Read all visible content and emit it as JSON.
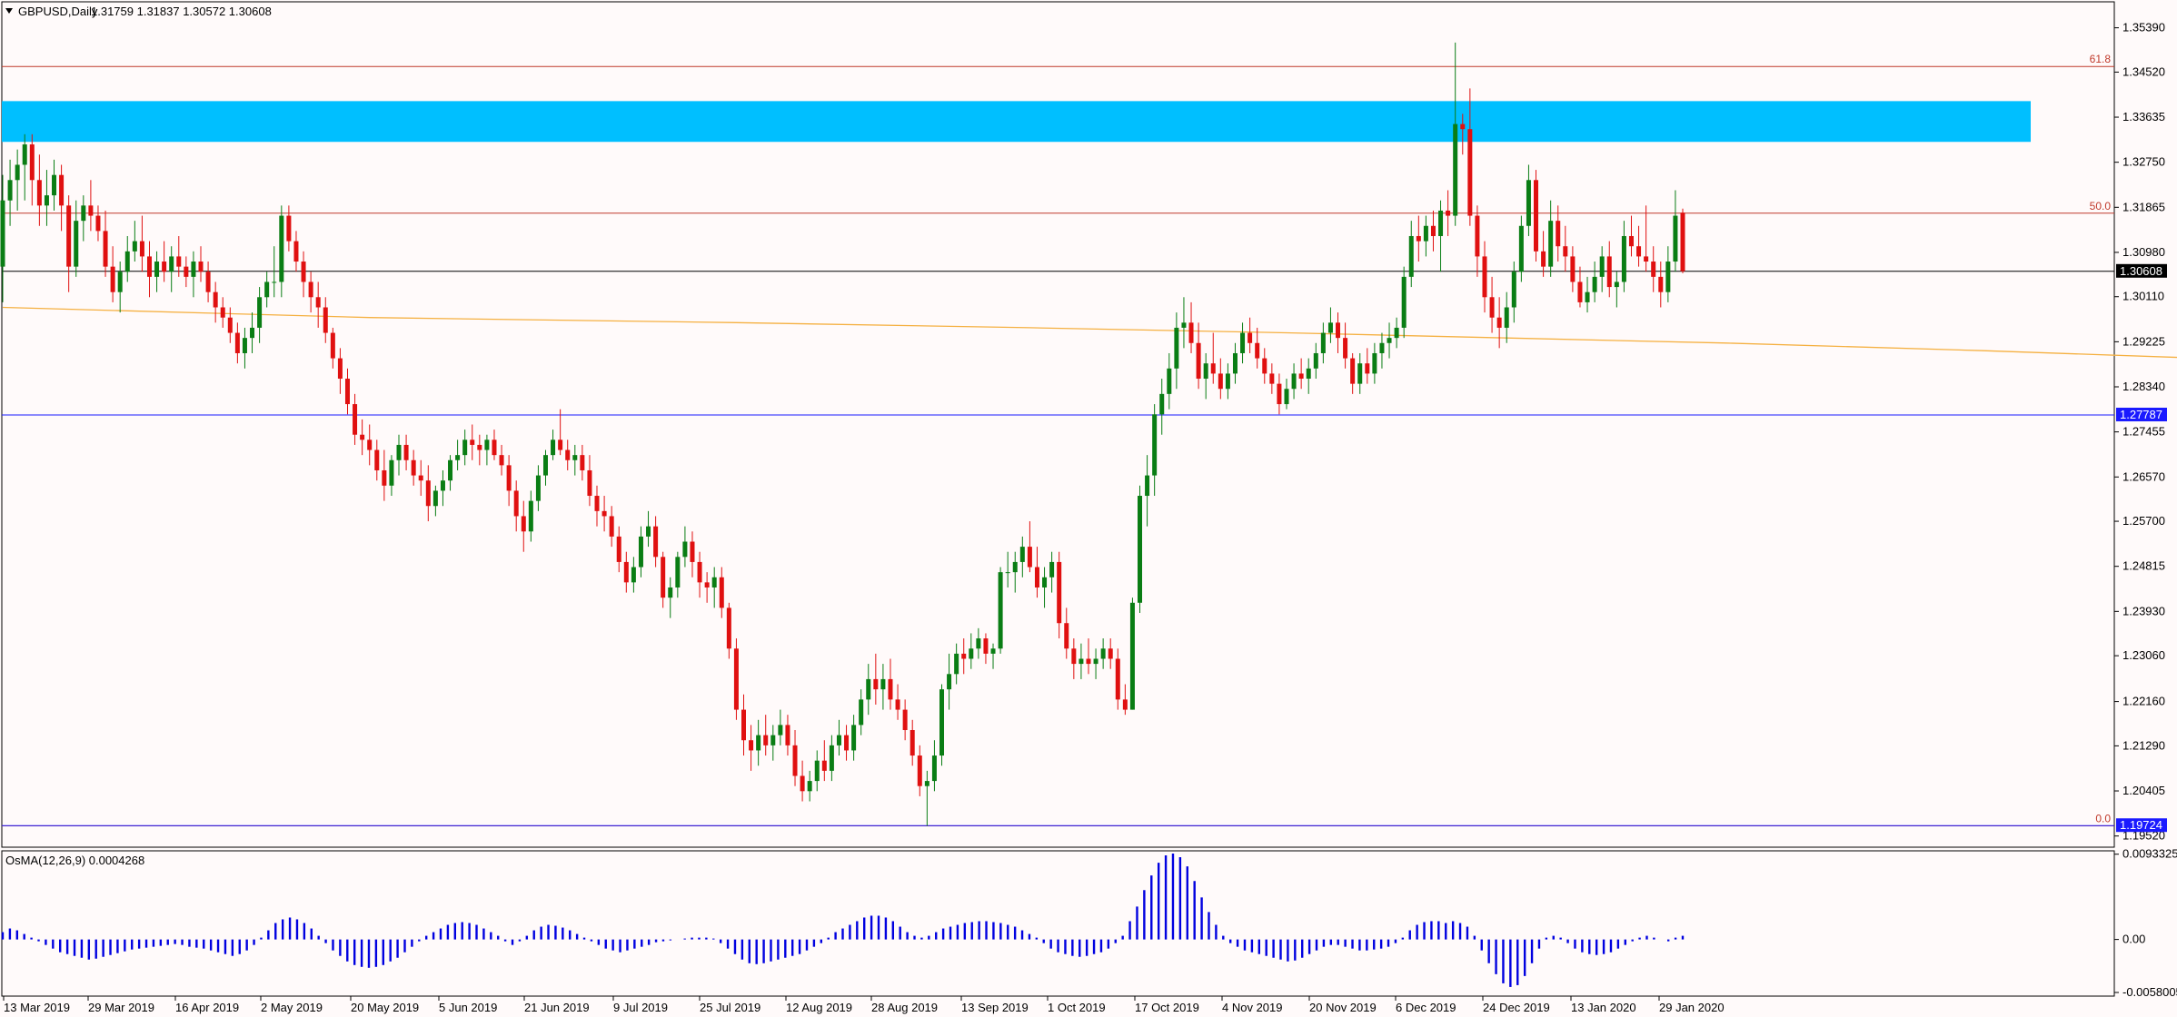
{
  "header": {
    "symbol": "GBPUSD,Daily",
    "ohlc": "1.31759 1.31837 1.30572 1.30608"
  },
  "chart_data": {
    "type": "candlestick",
    "y_axis_ticks": [
      "1.35390",
      "1.34520",
      "1.33635",
      "1.32750",
      "1.31865",
      "1.30980",
      "1.30110",
      "1.29225",
      "1.28340",
      "1.27455",
      "1.26570",
      "1.25700",
      "1.24815",
      "1.23930",
      "1.23060",
      "1.22160",
      "1.21290",
      "1.20405",
      "1.19520"
    ],
    "ylim": [
      1.193,
      1.359
    ],
    "x_axis_ticks": [
      "13 Mar 2019",
      "29 Mar 2019",
      "16 Apr 2019",
      "2 May 2019",
      "20 May 2019",
      "5 Jun 2019",
      "21 Jun 2019",
      "9 Jul 2019",
      "25 Jul 2019",
      "12 Aug 2019",
      "28 Aug 2019",
      "13 Sep 2019",
      "1 Oct 2019",
      "17 Oct 2019",
      "4 Nov 2019",
      "20 Nov 2019",
      "6 Dec 2019",
      "24 Dec 2019",
      "13 Jan 2020",
      "29 Jan 2020"
    ],
    "price_levels": [
      {
        "label": "1.30608",
        "value": 1.30608,
        "kind": "current",
        "color": "#000000"
      },
      {
        "label": "1.27787",
        "value": 1.27787,
        "kind": "horizontal",
        "color": "#1a1aff"
      },
      {
        "label": "1.19724",
        "value": 1.19724,
        "kind": "horizontal",
        "color": "#1a1aff"
      }
    ],
    "fibonacci": [
      {
        "label": "61.8",
        "value": 1.3463
      },
      {
        "label": "50.0",
        "value": 1.3175
      },
      {
        "label": "0.0",
        "value": 1.1972
      }
    ],
    "zone": {
      "from": 1.3315,
      "to": 1.3395,
      "color": "#00bfff"
    },
    "moving_average": {
      "color": "#f5b041",
      "points": [
        [
          0,
          1.299
        ],
        [
          50,
          1.297
        ],
        [
          100,
          1.296
        ],
        [
          140,
          1.295
        ],
        [
          175,
          1.294
        ],
        [
          205,
          1.293
        ],
        [
          235,
          1.292
        ],
        [
          270,
          1.2905
        ],
        [
          300,
          1.289
        ],
        [
          325,
          1.2875
        ],
        [
          355,
          1.2855
        ],
        [
          380,
          1.2835
        ],
        [
          405,
          1.281
        ],
        [
          430,
          1.279
        ],
        [
          455,
          1.277
        ],
        [
          480,
          1.275
        ],
        [
          505,
          1.2735
        ],
        [
          530,
          1.272
        ],
        [
          560,
          1.271
        ],
        [
          585,
          1.2705
        ],
        [
          610,
          1.2705
        ],
        [
          640,
          1.27
        ],
        [
          665,
          1.27
        ],
        [
          690,
          1.2695
        ],
        [
          710,
          1.27
        ],
        [
          730,
          1.27
        ],
        [
          755,
          1.2695
        ],
        [
          775,
          1.269
        ],
        [
          800,
          1.269
        ],
        [
          819,
          1.269
        ]
      ]
    },
    "candles_raw": "1.3070 1.3250 1.3000 1.3200|1.3200 1.3280 1.3150 1.3240|1.3240 1.3300 1.3180 1.3270|1.3270 1.3330 1.3200 1.3310|1.3310 1.3330 1.3190 1.3240|1.3240 1.3290 1.3150 1.3190|1.3190 1.3260 1.3150 1.3210|1.3210 1.3280 1.3180 1.3250|1.3250 1.3270 1.3140 1.3190|1.3190 1.3210 1.3020 1.3070|1.3070 1.3200 1.3050 1.3160|1.3160 1.3210 1.3120 1.3190|1.3190 1.3240 1.3140 1.3170|1.3170 1.3190 1.3120 1.3140|1.3140 1.3180 1.3050 1.3070|1.3070 1.3110 1.3000 1.3020|1.3020 1.3080 1.2980 1.3060|1.3060 1.3130 1.3040 1.3100|1.3100 1.3160 1.3080 1.3120|1.3120 1.3170 1.3060 1.3090|1.3090 1.3120 1.3010 1.3050|1.3050 1.3100 1.3020 1.3080|1.3080 1.3120 1.3040 1.3060|1.3060 1.3110 1.3020 1.3090|1.3090 1.3130 1.3050 1.3070|1.3070 1.3090 1.3030 1.3050|1.3050 1.3100 1.3010 1.3080|1.3080 1.3110 1.3040 1.3060|1.3060 1.3080 1.3000 1.3020|1.3020 1.3040 1.2960 1.2990|1.2990 1.3010 1.2950 1.2970|1.2970 1.2990 1.2920 1.2940|1.2940 1.2960 1.2880 1.2900|1.2900 1.2950 1.2870 1.2930|1.2930 1.2980 1.2900 1.2950|1.2950 1.3030 1.2920 1.3010|1.3010 1.3060 1.2990 1.3040|1.3040 1.3110 1.3010 1.3040|1.3040 1.3190 1.3010 1.3170|1.3170 1.3190 1.3100 1.3120|1.3120 1.3140 1.3060 1.3080|1.3080 1.3100 1.3010 1.3040|1.3040 1.3060 1.2980 1.3010|1.3010 1.3040 1.2950 1.2990|1.2990 1.3010 1.2920 1.2940|1.2940 1.2950 1.2870 1.2890|1.2890 1.2910 1.2820 1.2850|1.2850 1.2870 1.2780 1.2800|1.2800 1.2820 1.2720 1.2740|1.2740 1.2770 1.2700 1.2730|1.2730 1.2760 1.2680 1.2710|1.2710 1.2730 1.2650 1.2670|1.2670 1.2710 1.2610 1.2640|1.2640 1.2700 1.2620 1.2690|1.2690 1.2740 1.2660 1.2720|1.2720 1.2740 1.2670 1.2690|1.2690 1.2710 1.2640 1.2660|1.2660 1.2690 1.2620 1.2650|1.2650 1.2680 1.2570 1.2600|1.2600 1.2640 1.2580 1.2630|1.2630 1.2670 1.2600 1.2650|1.2650 1.2700 1.2630 1.2690|1.2690 1.2730 1.2670 1.2700|1.2700 1.2750 1.2680 1.2730|1.2730 1.2760 1.2690 1.2720|1.2720 1.2740 1.2680 1.2710|1.2710 1.2740 1.2680 1.2730|1.2730 1.2750 1.2690 1.2700|1.2700 1.2720 1.2660 1.2680|1.2680 1.2700 1.2600 1.2630|1.2630 1.2650 1.2550 1.2580|1.2580 1.2610 1.2510 1.2550|1.2550 1.2630 1.2530 1.2610|1.2610 1.2680 1.2590 1.2660|1.2660 1.2710 1.2640 1.2700|1.2700 1.2750 1.2690 1.2730|1.2730 1.2790 1.2700 1.2710|1.2710 1.2730 1.2670 1.2690|1.2690 1.2720 1.2660 1.2700|1.2700 1.2720 1.2650 1.2670|1.2670 1.2700 1.2600 1.2620|1.2620 1.2640 1.2560 1.2590|1.2590 1.2620 1.2550 1.2580|1.2580 1.2600 1.2520 1.2540|1.2540 1.2560 1.2470 1.2490|1.2490 1.2510 1.2430 1.2450|1.2450 1.2500 1.2430 1.2480|1.2480 1.2560 1.2460 1.2540|1.2540 1.2590 1.2520 1.2560|1.2560 1.2580 1.2480 1.2500|1.2500 1.2510 1.2400 1.2420|1.2420 1.2460 1.2380 1.2440|1.2440 1.2510 1.2420 1.2500|1.2500 1.2560 1.2480 1.2530|1.2530 1.2550 1.2460 1.2490|1.2490 1.2510 1.2420 1.2450|1.2450 1.2470 1.2410 1.2440|1.2440 1.2480 1.2400 1.2460|1.2460 1.2480 1.2380 1.2400|1.2400 1.2410 1.2300 1.2320|1.2320 1.2340 1.2180 1.2200|1.2200 1.2230 1.2110 1.2140|1.2140 1.2170 1.2080 1.2120|1.2120 1.2180 1.2090 1.2150|1.2150 1.2190 1.2110 1.2130|1.2130 1.2170 1.2100 1.2150|1.2150 1.2200 1.2130 1.2170|1.2170 1.2190 1.2110 1.2130|1.2130 1.2160 1.2050 1.2070|1.2070 1.2100 1.2020 1.2040|1.2040 1.2080 1.2020 1.2060|1.2060 1.2120 1.2040 1.2100|1.2100 1.2140 1.2060 1.2080|1.2080 1.2150 1.2060 1.2130|1.2130 1.2180 1.2110 1.2150|1.2150 1.2170 1.2100 1.2120|1.2120 1.2190 1.2100 1.2170|1.2170 1.2240 1.2150 1.2220|1.2220 1.2290 1.2190 1.2260|1.2260 1.2310 1.2210 1.2240|1.2240 1.2290 1.2200 1.2260|1.2260 1.2300 1.2200 1.2220|1.2220 1.2250 1.2180 1.2200|1.2200 1.2220 1.2140 1.2160|1.2160 1.2180 1.2090 1.2110|1.2110 1.2130 1.2030 1.2050|1.2050 1.2080 1.1972 1.2060|1.2060 1.2140 1.2040 1.2110|1.2110 1.2250 1.2090 1.2240|1.2240 1.2310 1.2200 1.2270|1.2270 1.2330 1.2250 1.2310|1.2310 1.2340 1.2270 1.2300|1.2300 1.2350 1.2280 1.2320|1.2320 1.2360 1.2300 1.2340|1.2340 1.2350 1.2290 1.2310|1.2310 1.2330 1.2280 1.2320|1.2320 1.2480 1.2310 1.2470|1.2470 1.2510 1.2440 1.2470|1.2470 1.2510 1.2430 1.2490|1.2490 1.2540 1.2460 1.2520|1.2520 1.2570 1.2470 1.2480|1.2480 1.2520 1.2420 1.2440|1.2440 1.2480 1.2400 1.2460|1.2460 1.2510 1.2430 1.2490|1.2490 1.2510 1.2340 1.2370|1.2370 1.2400 1.2300 1.2320|1.2320 1.2340 1.2260 1.2290|1.2290 1.2330 1.2260 1.2300|1.2300 1.2340 1.2270 1.2290|1.2290 1.2320 1.2260 1.2300|1.2300 1.2340 1.2280 1.2320|1.2320 1.2340 1.2280 1.2300|1.2300 1.2320 1.2200 1.2220|1.2220 1.2250 1.2190 1.2200|1.2200 1.2420 1.2200 1.2410|1.2410 1.2640 1.2390 1.2620|1.2620 1.2700 1.2560 1.2660|1.2660 1.2800 1.2620 1.2780|1.2780 1.2850 1.2740 1.2820|1.2820 1.2900 1.2790 1.2870|1.2870 1.2980 1.2830 1.2950|1.2950 1.3010 1.2910 1.2960|1.2960 1.3000 1.2900 1.2920|1.2920 1.2960 1.2830 1.2850|1.2850 1.2900 1.2810 1.2880|1.2880 1.2940 1.2840 1.2860|1.2860 1.2890 1.2810 1.2830|1.2830 1.2880 1.2810 1.2860|1.2860 1.2920 1.2840 1.2900|1.2900 1.2960 1.2880 1.2940|1.2940 1.2970 1.2900 1.2920|1.2920 1.2950 1.2870 1.2890|1.2890 1.2910 1.2840 1.2860|1.2860 1.2880 1.2820 1.2840|1.2840 1.2860 1.2780 1.2800|1.2800 1.2850 1.2790 1.2830|1.2830 1.2880 1.2810 1.2860|1.2860 1.2890 1.2830 1.2850|1.2850 1.2890 1.2820 1.2870|1.2870 1.2920 1.2850 1.2900|1.2900 1.2960 1.2880 1.2940|1.2940 1.2990 1.2920 1.2960|1.2960 1.2980 1.2900 1.2930|1.2930 1.2960 1.2870 1.2890|1.2890 1.2900 1.2820 1.2840|1.2840 1.2900 1.2820 1.2880|1.2880 1.2910 1.2840 1.2860|1.2860 1.2920 1.2840 1.2900|1.2900 1.2940 1.2870 1.2920|1.2920 1.2960 1.2890 1.2930|1.2930 1.2970 1.2910 1.2950|1.2950 1.3070 1.2930 1.3050|1.3050 1.3160 1.3030 1.3130|1.3130 1.3170 1.3080 1.3120|1.3120 1.3170 1.3090 1.3150|1.3150 1.3180 1.3100 1.3130|1.3130 1.3200 1.3060 1.3180|1.3180 1.3220 1.3130 1.3170|1.3170 1.3510 1.3150 1.3350|1.3350 1.3370 1.3290 1.3340|1.3340 1.3420 1.3150 1.3170|1.3170 1.3190 1.3050 1.3090|1.3090 1.3120 1.2980 1.3010|1.3010 1.3050 1.2940 1.2970|1.2970 1.3010 1.2910 1.2950|1.2950 1.3020 1.2920 1.2990|1.2990 1.3080 1.2960 1.3060|1.3060 1.3170 1.3040 1.3150|1.3150 1.3270 1.3130 1.3240|1.3240 1.3260 1.3080 1.3100|1.3100 1.3140 1.3050 1.3070|1.3070 1.3200 1.3050 1.3160|1.3160 1.3190 1.3080 1.3110|1.3110 1.3150 1.3060 1.3090|1.3090 1.3110 1.3020 1.3040|1.3040 1.3070 1.2990 1.3000|1.3000 1.3050 1.2980 1.3020|1.3020 1.3080 1.3000 1.3050|1.3050 1.3110 1.3020 1.3090|1.3090 1.3120 1.3010 1.3030|1.3030 1.3060 1.2990 1.3040|1.3040 1.3160 1.3020 1.3130|1.3130 1.3170 1.3090 1.3110|1.3110 1.3150 1.3070 1.3090|1.3090 1.3190 1.3060 1.3080|1.3080 1.3110 1.3020 1.3050|1.3050 1.3080 1.2990 1.3020|1.3020 1.3110 1.3000 1.3080|1.3080 1.3220 1.3060 1.3170|1.3176 1.3184 1.3057 1.3061",
    "oscillator": {
      "label": "OsMA(12,26,9) 0.0004268",
      "y_axis_ticks": [
        "0.0093325",
        "0.00",
        "-0.0058005"
      ],
      "ylim": [
        -0.0062,
        0.0097
      ],
      "color": "#0000e0",
      "values_raw": "0.0008 0.0012 0.0010 0.0006 0.0002 -0.0002 -0.0006 -0.0010 -0.0014 -0.0016 -0.0018 -0.0020 -0.0022 -0.0021 -0.0019 -0.0017 -0.0015 -0.0013 -0.0011 -0.0010 -0.0009 -0.0008 -0.0007 -0.0006 -0.0005 -0.0006 -0.0008 -0.0009 -0.0010 -0.0012 -0.0014 -0.0016 -0.0018 -0.0016 -0.0012 -0.0006 0.0002 0.0010 0.0018 0.0022 0.0024 0.0022 0.0018 0.0012 0.0004 -0.0004 -0.0012 -0.0018 -0.0024 -0.0028 -0.0030 -0.0031 -0.0030 -0.0028 -0.0024 -0.0020 -0.0014 -0.0008 -0.0002 0.0004 0.0008 0.0012 0.0016 0.0018 0.0019 0.0018 0.0016 0.0012 0.0008 0.0004 -0.0002 -0.0006 -0.0002 0.0004 0.0010 0.0014 0.0016 0.0015 0.0013 0.0010 0.0006 0.0002 -0.0002 -0.0006 -0.0010 -0.0012 -0.0014 -0.0012 -0.0010 -0.0008 -0.0006 -0.0003 -0.0002 -0.0001 0.0000 0.0001 0.0002 0.0002 0.0002 0.0001 -0.0004 -0.0010 -0.0016 -0.0022 -0.0026 -0.0027 -0.0026 -0.0024 -0.0022 -0.0020 -0.0018 -0.0016 -0.0012 -0.0008 -0.0004 0.0002 0.0008 0.0012 0.0016 0.0020 0.0024 0.0026 0.0026 0.0024 0.0020 0.0014 0.0008 0.0004 0.0002 0.0004 0.0008 0.0012 0.0014 0.0016 0.0018 0.0019 0.0020 0.0020 0.0019 0.0018 0.0016 0.0014 0.0010 0.0006 0.0002 -0.0004 -0.0010 -0.0014 -0.0016 -0.0018 -0.0019 -0.0018 -0.0016 -0.0014 -0.0010 -0.0004 0.0004 0.0020 0.0036 0.0054 0.0070 0.0084 0.0092 0.0094 0.0090 0.0080 0.0064 0.0046 0.0030 0.0016 0.0004 -0.0004 -0.0008 -0.0012 -0.0014 -0.0016 -0.0018 -0.0020 -0.0022 -0.0024 -0.0023 -0.0020 -0.0016 -0.0012 -0.0008 -0.0006 -0.0006 -0.0008 -0.0010 -0.0012 -0.0012 -0.0011 -0.0010 -0.0008 -0.0004 0.0002 0.0010 0.0016 0.0019 0.0020 0.0020 0.0018 0.0020 0.0018 0.0014 0.0004 -0.0012 -0.0026 -0.0038 -0.0048 -0.0052 -0.0050 -0.0040 -0.0026 -0.0010 0.0002 0.0004 0.0002 -0.0004 -0.0010 -0.0014 -0.0016 -0.0017 -0.0016 -0.0014 -0.0010 -0.0006 -0.0002 0.0002 0.0004 0.0002 0.0000 -0.0002 0.0002 0.0004"
    }
  }
}
